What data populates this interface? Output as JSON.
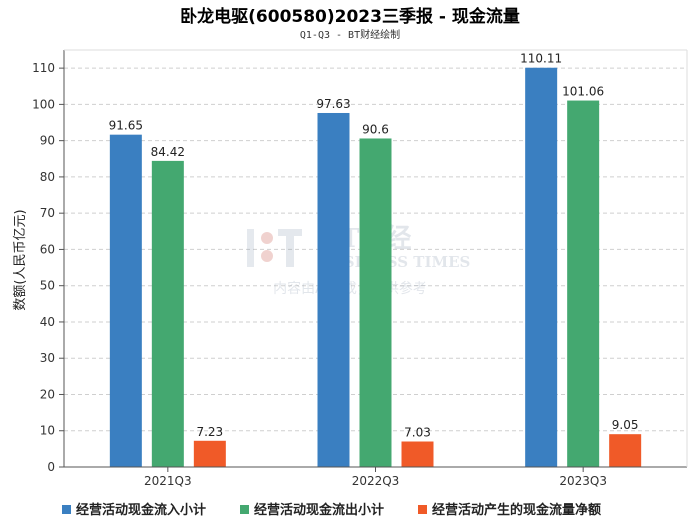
{
  "colors": {
    "inflow": "#3a7fc1",
    "outflow": "#44a870",
    "net": "#f05a28",
    "grid": "#cfcfcf",
    "axis": "#555555"
  },
  "watermark": {
    "brand": "BT财经",
    "english": "BUSINESS TIMES",
    "note": "内容由AI生成，仅供参考"
  },
  "chart_data": {
    "type": "bar",
    "title": "卧龙电驱(600580)2023三季报 - 现金流量",
    "subtitle": "Q1-Q3 - BT财经绘制",
    "xlabel": "",
    "ylabel": "数额(人民币亿元)",
    "ylim": [
      0,
      115
    ],
    "yticks": [
      0,
      10,
      20,
      30,
      40,
      50,
      60,
      70,
      80,
      90,
      100,
      110
    ],
    "grid": true,
    "legend_position": "bottom",
    "categories": [
      "2021Q3",
      "2022Q3",
      "2023Q3"
    ],
    "series": [
      {
        "name": "经营活动现金流入小计",
        "values": [
          91.65,
          97.63,
          110.11
        ],
        "labels": [
          "91.65",
          "97.63",
          "110.11"
        ],
        "color": "#3a7fc1"
      },
      {
        "name": "经营活动现金流出小计",
        "values": [
          84.42,
          90.6,
          101.06
        ],
        "labels": [
          "84.42",
          "90.6",
          "101.06"
        ],
        "color": "#44a870"
      },
      {
        "name": "经营活动产生的现金流量净额",
        "values": [
          7.23,
          7.03,
          9.05
        ],
        "labels": [
          "7.23",
          "7.03",
          "9.05"
        ],
        "color": "#f05a28"
      }
    ]
  }
}
